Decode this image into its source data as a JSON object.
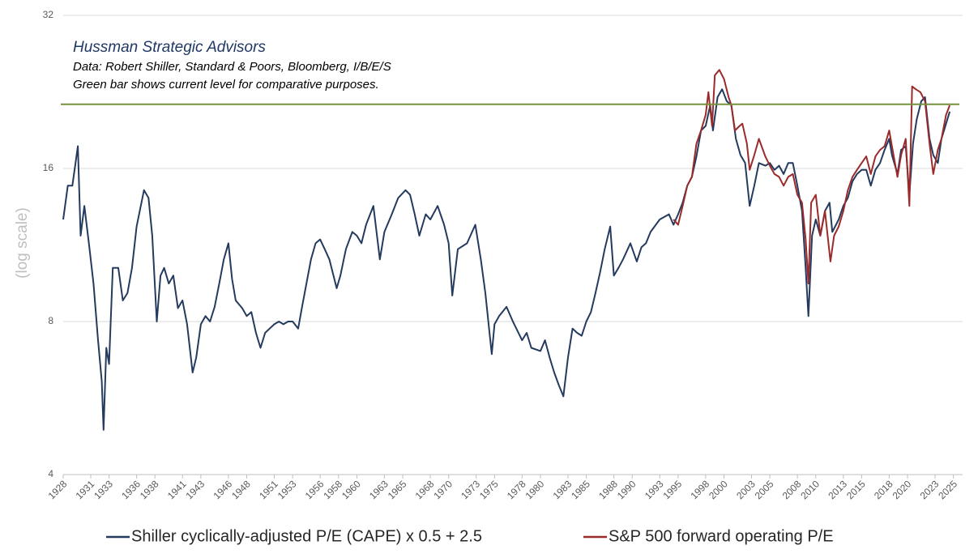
{
  "chart_data": {
    "type": "line",
    "annotations": [
      "Hussman Strategic Advisors",
      "Data: Robert Shiller, Standard & Poors, Bloomberg, I/B/E/S",
      "Green bar shows current level for comparative purposes."
    ],
    "y_label": "(log scale)",
    "log_scale": true,
    "grid": true,
    "ylim": [
      4,
      32
    ],
    "yticks": [
      4,
      8,
      16,
      32
    ],
    "xlim": [
      1928,
      2026
    ],
    "xticks": [
      1928,
      1931,
      1933,
      1936,
      1938,
      1941,
      1943,
      1946,
      1948,
      1951,
      1953,
      1956,
      1958,
      1960,
      1963,
      1965,
      1968,
      1970,
      1973,
      1975,
      1978,
      1980,
      1983,
      1985,
      1988,
      1990,
      1993,
      1995,
      1998,
      2000,
      2003,
      2005,
      2008,
      2010,
      2013,
      2015,
      2018,
      2020,
      2023,
      2025
    ],
    "reference_line": {
      "value": 21.4,
      "color": "#76923c"
    },
    "series": [
      {
        "name": "Shiller cyclically-adjusted P/E (CAPE) x 0.5 + 2.5",
        "color": "#243a5e",
        "x": [
          1928.0,
          1928.5,
          1929.0,
          1929.6,
          1929.9,
          1930.3,
          1930.8,
          1931.3,
          1931.8,
          1932.2,
          1932.4,
          1932.7,
          1933.0,
          1933.4,
          1934.0,
          1934.5,
          1935.0,
          1935.5,
          1936.0,
          1936.8,
          1937.3,
          1937.7,
          1938.2,
          1938.6,
          1939.0,
          1939.5,
          1940.0,
          1940.5,
          1941.0,
          1941.5,
          1942.1,
          1942.5,
          1943.0,
          1943.5,
          1944.0,
          1944.5,
          1945.0,
          1945.5,
          1946.0,
          1946.4,
          1946.8,
          1947.5,
          1948.0,
          1948.5,
          1949.0,
          1949.5,
          1950.0,
          1950.5,
          1951.0,
          1951.5,
          1952.0,
          1952.5,
          1953.0,
          1953.6,
          1954.0,
          1954.5,
          1955.0,
          1955.5,
          1956.0,
          1956.5,
          1957.0,
          1957.8,
          1958.2,
          1958.8,
          1959.5,
          1960.0,
          1960.5,
          1961.0,
          1961.8,
          1962.5,
          1963.0,
          1963.8,
          1964.5,
          1965.3,
          1965.8,
          1966.3,
          1966.8,
          1967.5,
          1968.0,
          1968.8,
          1969.5,
          1970.0,
          1970.4,
          1971.0,
          1972.0,
          1972.9,
          1973.5,
          1974.0,
          1974.7,
          1975.0,
          1975.5,
          1976.3,
          1977.0,
          1978.0,
          1978.5,
          1979.0,
          1980.0,
          1980.5,
          1981.0,
          1981.5,
          1982.0,
          1982.5,
          1983.0,
          1983.5,
          1984.0,
          1984.5,
          1985.0,
          1985.5,
          1986.0,
          1986.5,
          1987.0,
          1987.6,
          1988.0,
          1988.5,
          1989.0,
          1989.8,
          1990.5,
          1991.0,
          1991.5,
          1992.0,
          1993.0,
          1994.0,
          1994.5,
          1995.0,
          1995.5,
          1996.0,
          1996.5,
          1997.0,
          1997.5,
          1998.0,
          1998.5,
          1998.8,
          1999.3,
          1999.8,
          2000.3,
          2000.8,
          2001.3,
          2001.8,
          2002.3,
          2002.8,
          2003.3,
          2003.8,
          2004.5,
          2005.0,
          2005.5,
          2006.0,
          2006.5,
          2007.0,
          2007.5,
          2008.0,
          2008.5,
          2008.9,
          2009.2,
          2009.6,
          2010.0,
          2010.5,
          2011.0,
          2011.5,
          2011.8,
          2012.5,
          2013.0,
          2013.5,
          2014.0,
          2014.5,
          2015.0,
          2015.5,
          2016.0,
          2016.5,
          2017.0,
          2017.5,
          2018.0,
          2018.3,
          2018.9,
          2019.3,
          2019.8,
          2020.2,
          2020.6,
          2021.0,
          2021.5,
          2021.9,
          2022.4,
          2022.8,
          2023.3,
          2023.7,
          2024.2,
          2024.6
        ],
        "values": [
          12.7,
          14.8,
          14.8,
          17.7,
          11.8,
          13.5,
          11.4,
          9.5,
          7.35,
          6.1,
          4.9,
          7.1,
          6.6,
          10.2,
          10.2,
          8.8,
          9.1,
          10.2,
          12.3,
          14.5,
          14.0,
          11.8,
          8.0,
          9.85,
          10.2,
          9.5,
          9.85,
          8.5,
          8.8,
          7.9,
          6.35,
          6.8,
          7.9,
          8.2,
          8.0,
          8.55,
          9.5,
          10.6,
          11.4,
          9.7,
          8.8,
          8.5,
          8.2,
          8.35,
          7.6,
          7.1,
          7.6,
          7.75,
          7.9,
          8.0,
          7.9,
          8.0,
          8.0,
          7.75,
          8.5,
          9.5,
          10.6,
          11.4,
          11.6,
          11.1,
          10.6,
          9.3,
          9.85,
          11.1,
          12.0,
          11.8,
          11.4,
          12.4,
          13.5,
          10.6,
          12.0,
          13.0,
          14.0,
          14.5,
          14.2,
          13.0,
          11.8,
          13.0,
          12.7,
          13.5,
          12.4,
          11.4,
          9.0,
          11.1,
          11.4,
          12.4,
          10.6,
          9.1,
          6.9,
          7.9,
          8.2,
          8.55,
          8.0,
          7.35,
          7.6,
          7.1,
          7.0,
          7.35,
          6.8,
          6.35,
          6.0,
          5.7,
          6.8,
          7.75,
          7.6,
          7.5,
          8.0,
          8.35,
          9.1,
          10.0,
          11.1,
          12.3,
          9.85,
          10.2,
          10.6,
          11.4,
          10.5,
          11.2,
          11.4,
          12.0,
          12.7,
          13.0,
          12.4,
          13.0,
          13.7,
          14.8,
          15.4,
          16.9,
          19.0,
          19.4,
          21.3,
          19.0,
          22.1,
          22.9,
          21.7,
          21.3,
          18.3,
          17.0,
          16.4,
          13.5,
          14.8,
          16.4,
          16.2,
          16.4,
          15.9,
          16.2,
          15.6,
          16.4,
          16.4,
          14.8,
          13.2,
          10.2,
          8.2,
          11.8,
          12.7,
          11.8,
          13.2,
          13.7,
          12.0,
          12.7,
          13.5,
          14.0,
          15.1,
          15.6,
          15.9,
          15.9,
          14.8,
          15.9,
          16.4,
          17.4,
          18.3,
          17.0,
          15.6,
          17.4,
          17.7,
          14.2,
          17.9,
          20.0,
          21.7,
          22.1,
          18.3,
          17.0,
          16.4,
          18.3,
          19.6,
          20.7
        ]
      },
      {
        "name": "S&P 500 forward operating P/E",
        "color": "#9b2a2a",
        "x": [
          1994.5,
          1995.0,
          1995.5,
          1996.0,
          1996.5,
          1997.0,
          1997.5,
          1998.0,
          1998.3,
          1998.7,
          1999.0,
          1999.5,
          2000.0,
          2000.5,
          2000.8,
          2001.2,
          2001.7,
          2002.0,
          2002.5,
          2002.8,
          2003.3,
          2003.8,
          2004.5,
          2005.0,
          2005.5,
          2006.0,
          2006.5,
          2007.0,
          2007.5,
          2008.0,
          2008.5,
          2008.9,
          2009.2,
          2009.5,
          2010.0,
          2010.5,
          2011.0,
          2011.6,
          2012.0,
          2012.5,
          2013.0,
          2013.5,
          2014.0,
          2014.5,
          2015.0,
          2015.5,
          2016.0,
          2016.5,
          2017.0,
          2017.5,
          2018.0,
          2018.3,
          2018.9,
          2019.3,
          2019.8,
          2020.2,
          2020.5,
          2020.9,
          2021.4,
          2021.9,
          2022.4,
          2022.8,
          2023.3,
          2023.7,
          2024.2,
          2024.6
        ],
        "values": [
          12.7,
          12.4,
          13.5,
          14.8,
          15.4,
          17.9,
          19.0,
          20.4,
          22.6,
          19.4,
          24.4,
          25.0,
          24.0,
          22.1,
          21.3,
          19.0,
          19.4,
          19.6,
          17.9,
          15.9,
          17.0,
          18.3,
          16.9,
          16.2,
          15.6,
          15.4,
          14.8,
          15.4,
          15.6,
          14.2,
          13.7,
          11.6,
          9.5,
          13.7,
          14.2,
          11.8,
          13.2,
          10.5,
          11.8,
          12.3,
          13.2,
          14.5,
          15.4,
          15.9,
          16.4,
          16.9,
          15.6,
          16.9,
          17.4,
          17.7,
          19.0,
          17.7,
          15.4,
          17.0,
          18.3,
          13.5,
          23.2,
          22.9,
          22.6,
          21.7,
          17.9,
          15.6,
          17.4,
          18.3,
          20.4,
          21.3
        ]
      }
    ]
  }
}
